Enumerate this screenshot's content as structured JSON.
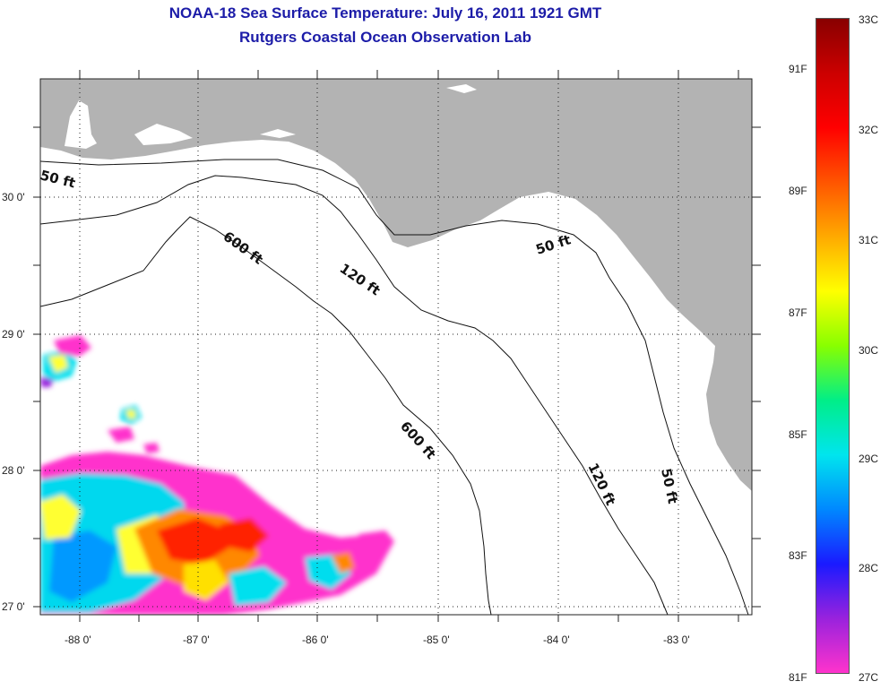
{
  "title": "NOAA-18 Sea Surface Temperature:  July 16, 2011 1921 GMT",
  "subtitle": "Rutgers Coastal Ocean Observation Lab",
  "axes": {
    "lat_ticks": [
      "30 0'",
      "29 0'",
      "28 0'",
      "27 0'"
    ],
    "lon_ticks": [
      "-88 0'",
      "-87 0'",
      "-86 0'",
      "-85 0'",
      "-84 0'",
      "-83 0'"
    ]
  },
  "contour_labels": {
    "c50a": "50 ft",
    "c50b": "50 ft",
    "c50c": "50 ft",
    "c120a": "120 ft",
    "c120b": "120 ft",
    "c600a": "600 ft",
    "c600b": "600 ft"
  },
  "colorbar": {
    "celsius": [
      "33C",
      "32C",
      "31C",
      "30C",
      "29C",
      "28C",
      "27C"
    ],
    "fahrenheit": [
      "91F",
      "89F",
      "87F",
      "85F",
      "83F",
      "81F"
    ],
    "stops": [
      "#ff33cc",
      "#9922dd",
      "#1a1aff",
      "#0088ff",
      "#00e5ee",
      "#00ee88",
      "#88ff00",
      "#ffff00",
      "#ffaa00",
      "#ff5500",
      "#ff0000",
      "#cc0000",
      "#880000"
    ]
  },
  "colors": {
    "land": "#b3b3b3",
    "title": "#1c1ca8",
    "cold": "#ff33cc",
    "warm": "#ff3300"
  }
}
